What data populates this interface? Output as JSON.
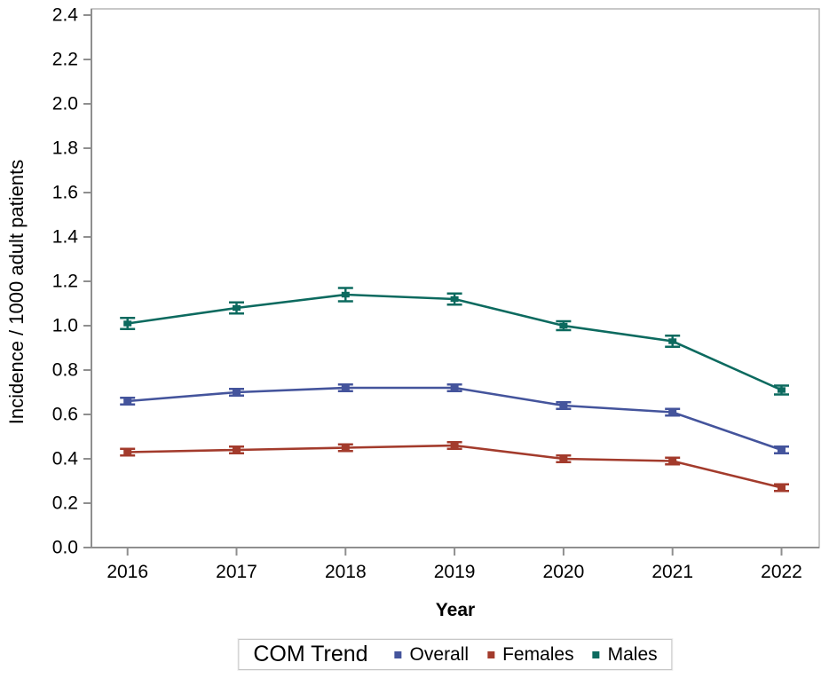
{
  "page": {
    "background": "#ffffff",
    "text_color": "#000000"
  },
  "chart_data": {
    "type": "line",
    "title": "",
    "xlabel": "Year",
    "ylabel": "Incidence / 1000 adult patients",
    "x_categories": [
      "2016",
      "2017",
      "2018",
      "2019",
      "2020",
      "2021",
      "2022"
    ],
    "ytick_labels": [
      "0.0",
      "0.2",
      "0.4",
      "0.6",
      "0.8",
      "1.0",
      "1.2",
      "1.4",
      "1.6",
      "1.8",
      "2.0",
      "2.2",
      "2.4"
    ],
    "ylim": [
      0.0,
      2.4
    ],
    "ytick_step": 0.2,
    "grid": false,
    "error_bars": true,
    "marker": "square-filled",
    "axis_color": "#8f8f8f",
    "frame_color": "#b5b5b5",
    "legend": {
      "title": "COM Trend",
      "position": "bottom"
    },
    "series": [
      {
        "name": "Overall",
        "color": "#44549C",
        "values": [
          0.66,
          0.7,
          0.72,
          0.72,
          0.64,
          0.61,
          0.44
        ],
        "errors": [
          0.015,
          0.015,
          0.015,
          0.015,
          0.015,
          0.015,
          0.015
        ]
      },
      {
        "name": "Females",
        "color": "#A33B2C",
        "values": [
          0.43,
          0.44,
          0.45,
          0.46,
          0.4,
          0.39,
          0.27
        ],
        "errors": [
          0.015,
          0.015,
          0.015,
          0.015,
          0.015,
          0.015,
          0.015
        ]
      },
      {
        "name": "Males",
        "color": "#0C6A5F",
        "values": [
          1.01,
          1.08,
          1.14,
          1.12,
          1.0,
          0.93,
          0.71
        ],
        "errors": [
          0.025,
          0.025,
          0.03,
          0.025,
          0.02,
          0.025,
          0.02
        ]
      }
    ]
  }
}
